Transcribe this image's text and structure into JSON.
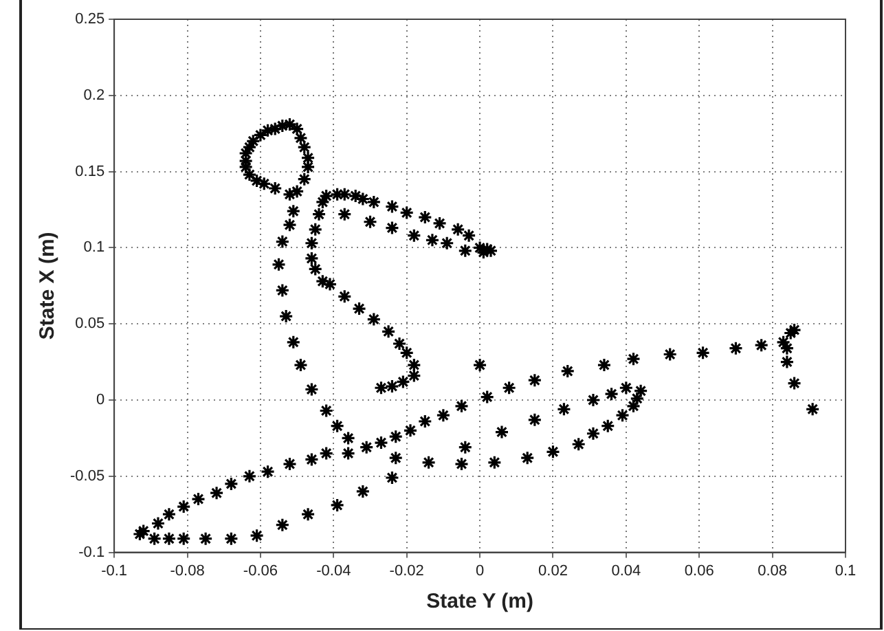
{
  "chart_data": {
    "type": "scatter",
    "xlabel": "State Y (m)",
    "ylabel": "State X (m)",
    "xlim": [
      -0.1,
      0.1
    ],
    "xticks": [
      -0.1,
      -0.08,
      -0.06,
      -0.04,
      -0.02,
      0,
      0.02,
      0.04,
      0.06,
      0.08,
      0.1
    ],
    "ylim": [
      -0.1,
      0.25
    ],
    "yticks": [
      -0.1,
      -0.05,
      0,
      0.05,
      0.1,
      0.15,
      0.2,
      0.25
    ],
    "grid": true,
    "marker": "cross",
    "legend": false,
    "series": [
      {
        "color": "#000000",
        "x": [
          -0.052,
          -0.054,
          -0.056,
          -0.058,
          -0.06,
          -0.062,
          -0.063,
          -0.064,
          -0.064,
          -0.064,
          -0.063,
          -0.061,
          -0.059,
          -0.056,
          -0.052,
          -0.05,
          -0.048,
          -0.047,
          -0.047,
          -0.048,
          -0.049,
          -0.05,
          -0.051,
          -0.052,
          -0.054,
          -0.055,
          -0.054,
          -0.053,
          -0.051,
          -0.049,
          -0.046,
          -0.042,
          -0.039,
          -0.036,
          -0.036,
          -0.031,
          -0.027,
          -0.023,
          -0.019,
          -0.015,
          -0.01,
          -0.005,
          -0.042,
          -0.046,
          -0.052,
          -0.058,
          -0.063,
          -0.068,
          -0.072,
          -0.077,
          -0.081,
          -0.085,
          -0.088,
          -0.092,
          -0.093,
          -0.089,
          -0.085,
          -0.081,
          -0.075,
          -0.068,
          -0.061,
          -0.054,
          -0.047,
          -0.039,
          -0.032,
          -0.024,
          -0.023,
          -0.014,
          -0.005,
          -0.004,
          -0.041,
          -0.037,
          -0.033,
          -0.029,
          -0.025,
          -0.022,
          -0.02,
          -0.018,
          -0.018,
          -0.021,
          -0.024,
          -0.027,
          -0.042,
          -0.039,
          -0.037,
          -0.034,
          -0.032,
          -0.043,
          -0.044,
          -0.045,
          -0.046,
          -0.046,
          -0.045,
          -0.043,
          -0.029,
          -0.024,
          -0.02,
          -0.015,
          -0.011,
          -0.006,
          -0.003,
          -0.037,
          -0.03,
          -0.024,
          -0.018,
          -0.013,
          -0.009,
          -0.004,
          0.0,
          0.002,
          0.003,
          0.001,
          0.0,
          0.002,
          0.008,
          0.015,
          0.024,
          0.034,
          0.042,
          0.052,
          0.061,
          0.07,
          0.077,
          0.083,
          0.085,
          0.086,
          0.084,
          0.084,
          0.086,
          0.091,
          0.006,
          0.015,
          0.023,
          0.031,
          0.036,
          0.04,
          0.044,
          0.043,
          0.042,
          0.039,
          0.035,
          0.031,
          0.027,
          0.02,
          0.013,
          0.004
        ],
        "values": [
          0.181,
          0.18,
          0.178,
          0.177,
          0.174,
          0.17,
          0.166,
          0.162,
          0.157,
          0.153,
          0.148,
          0.144,
          0.142,
          0.139,
          0.135,
          0.137,
          0.145,
          0.153,
          0.159,
          0.166,
          0.172,
          0.178,
          0.124,
          0.115,
          0.104,
          0.089,
          0.072,
          0.055,
          0.038,
          0.023,
          0.007,
          -0.007,
          -0.017,
          -0.025,
          -0.035,
          -0.031,
          -0.028,
          -0.024,
          -0.02,
          -0.014,
          -0.01,
          -0.004,
          -0.035,
          -0.039,
          -0.042,
          -0.047,
          -0.05,
          -0.055,
          -0.061,
          -0.065,
          -0.07,
          -0.075,
          -0.081,
          -0.086,
          -0.088,
          -0.091,
          -0.091,
          -0.091,
          -0.091,
          -0.091,
          -0.089,
          -0.082,
          -0.075,
          -0.069,
          -0.06,
          -0.051,
          -0.038,
          -0.041,
          -0.042,
          -0.031,
          0.076,
          0.068,
          0.06,
          0.053,
          0.045,
          0.037,
          0.031,
          0.023,
          0.016,
          0.012,
          0.009,
          0.008,
          0.134,
          0.135,
          0.135,
          0.134,
          0.132,
          0.13,
          0.122,
          0.112,
          0.103,
          0.093,
          0.086,
          0.078,
          0.13,
          0.127,
          0.123,
          0.12,
          0.116,
          0.112,
          0.108,
          0.122,
          0.117,
          0.113,
          0.108,
          0.105,
          0.103,
          0.098,
          0.1,
          0.099,
          0.098,
          0.097,
          0.023,
          0.002,
          0.008,
          0.013,
          0.019,
          0.023,
          0.027,
          0.03,
          0.031,
          0.034,
          0.036,
          0.038,
          0.044,
          0.046,
          0.034,
          0.025,
          0.011,
          -0.006,
          -0.021,
          -0.013,
          -0.006,
          0.0,
          0.004,
          0.008,
          0.006,
          0.001,
          -0.004,
          -0.01,
          -0.017,
          -0.022,
          -0.029,
          -0.034,
          -0.038,
          -0.041
        ]
      }
    ]
  }
}
